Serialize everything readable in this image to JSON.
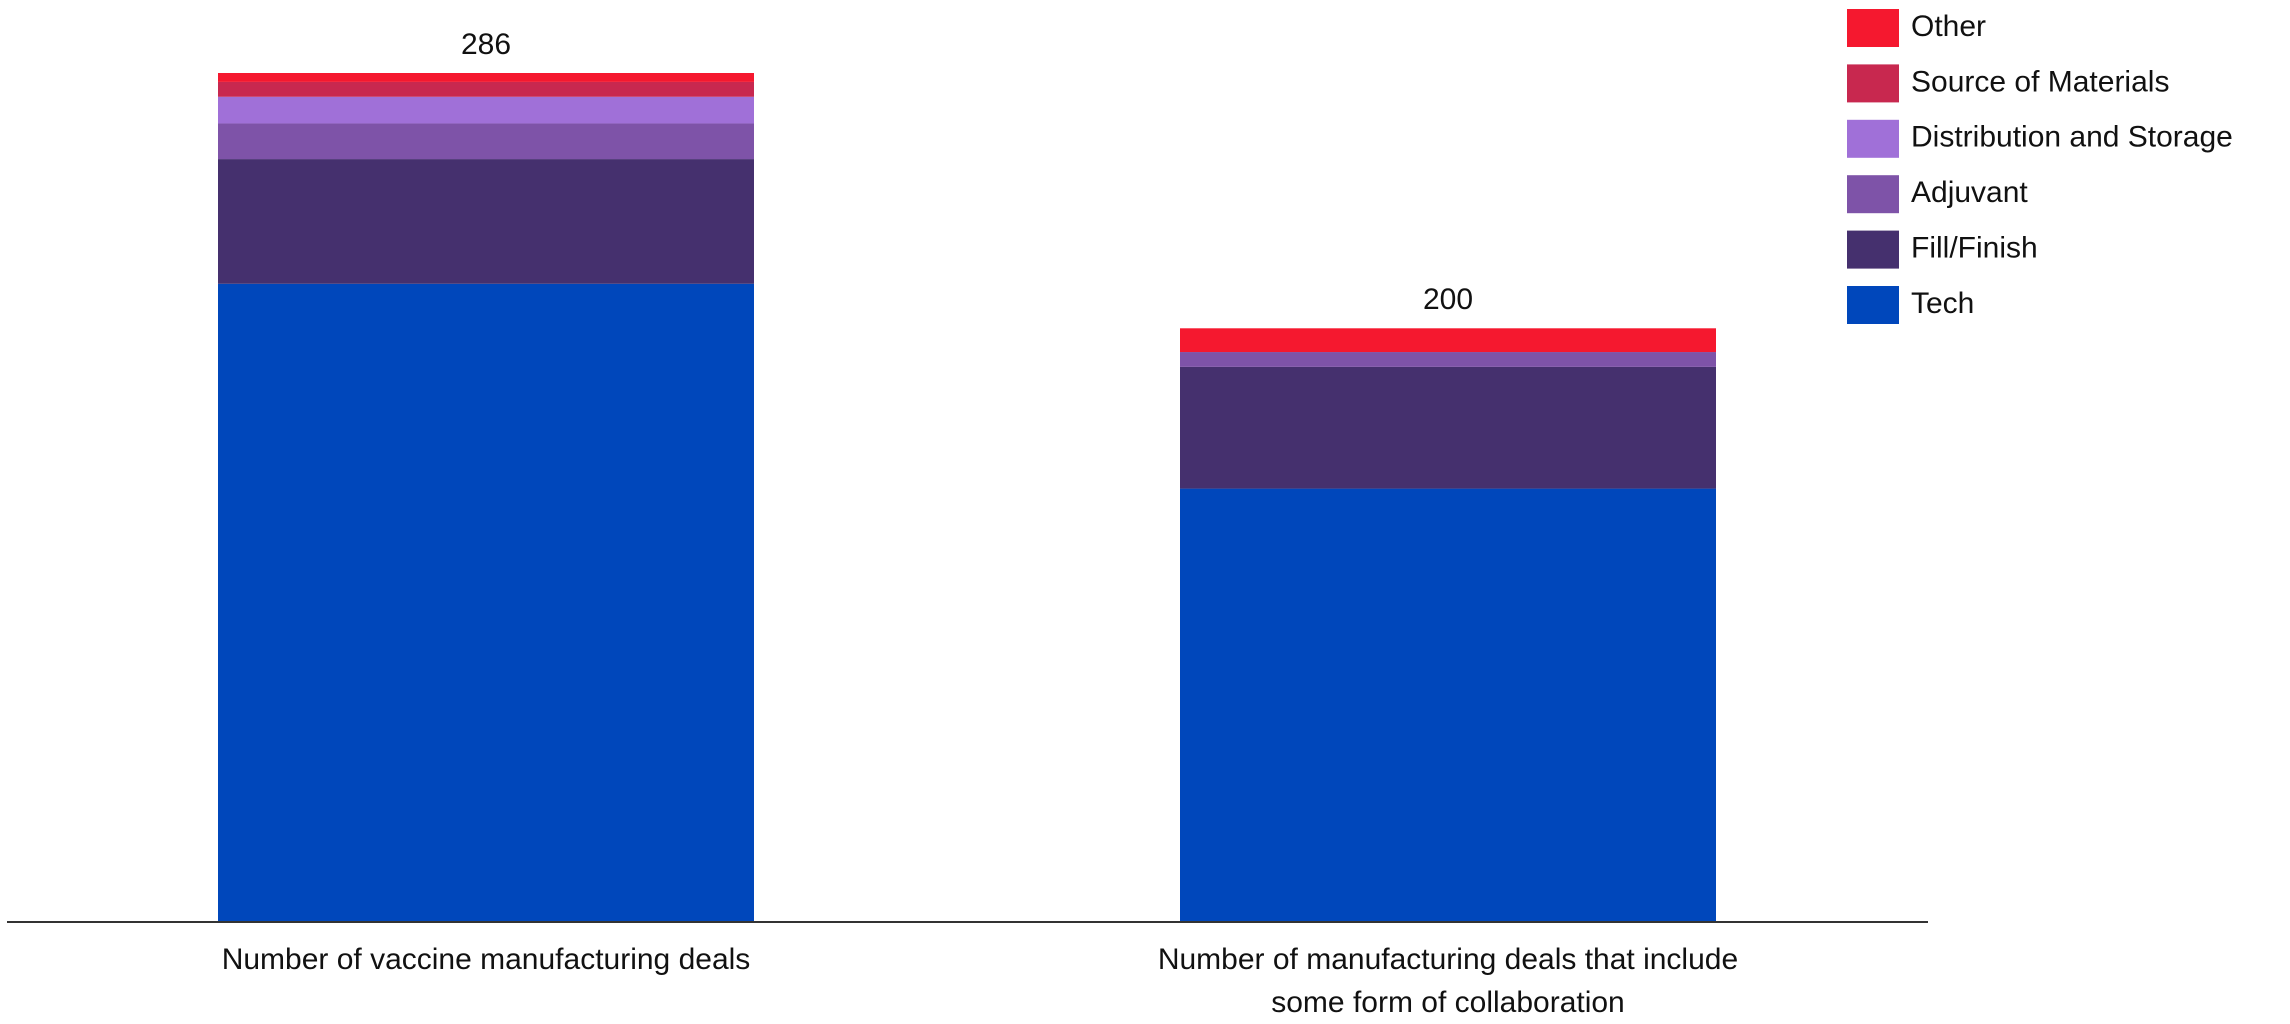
{
  "chart_data": {
    "type": "stacked_bar",
    "categories": [
      "Number of vaccine manufacturing deals",
      "Number of manufacturing deals that include some form of collaboration"
    ],
    "totals": [
      286,
      200
    ],
    "series": [
      {
        "name": "Tech",
        "color": "#0047bb",
        "values": [
          215,
          146
        ]
      },
      {
        "name": "Fill/Finish",
        "color": "#45306e",
        "values": [
          42,
          41
        ]
      },
      {
        "name": "Adjuvant",
        "color": "#7e53a8",
        "values": [
          12,
          5
        ]
      },
      {
        "name": "Distribution and Storage",
        "color": "#a070d8",
        "values": [
          9,
          0
        ]
      },
      {
        "name": "Source of Materials",
        "color": "#c8284f",
        "values": [
          5,
          0
        ]
      },
      {
        "name": "Other",
        "color": "#f5182f",
        "values": [
          3,
          8
        ]
      }
    ],
    "legend": "top-right"
  }
}
